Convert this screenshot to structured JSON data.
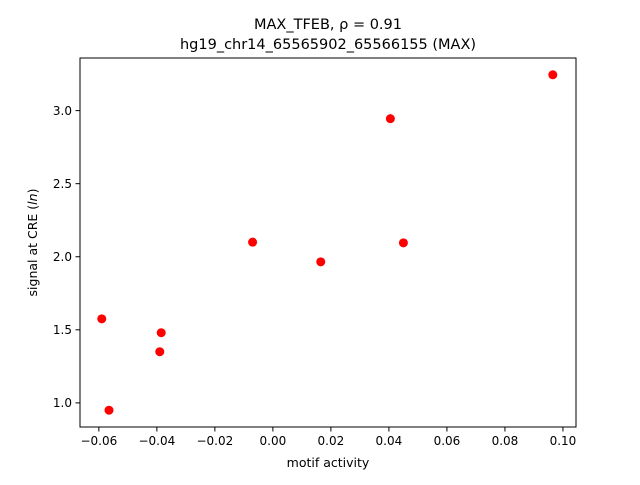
{
  "chart_data": {
    "type": "scatter",
    "title_line1": "MAX_TFEB, ρ = 0.91",
    "title_line2": "hg19_chr14_65565902_65566155 (MAX)",
    "xlabel": "motif activity",
    "ylabel_prefix": "signal at CRE (",
    "ylabel_italic": "ln",
    "ylabel_suffix": ")",
    "xlim": [
      -0.0665,
      0.1045
    ],
    "ylim": [
      0.835,
      3.36
    ],
    "xticks": [
      -0.06,
      -0.04,
      -0.02,
      0.0,
      0.02,
      0.04,
      0.06,
      0.08,
      0.1
    ],
    "xtick_labels": [
      "−0.06",
      "−0.04",
      "−0.02",
      "0.00",
      "0.02",
      "0.04",
      "0.06",
      "0.08",
      "0.10"
    ],
    "yticks": [
      1.0,
      1.5,
      2.0,
      2.5,
      3.0
    ],
    "ytick_labels": [
      "1.0",
      "1.5",
      "2.0",
      "2.5",
      "3.0"
    ],
    "marker_color": "#ff0000",
    "grid": false,
    "points": [
      {
        "x": -0.059,
        "y": 1.575
      },
      {
        "x": -0.0565,
        "y": 0.95
      },
      {
        "x": -0.0385,
        "y": 1.48
      },
      {
        "x": -0.039,
        "y": 1.35
      },
      {
        "x": -0.007,
        "y": 2.1
      },
      {
        "x": 0.0165,
        "y": 1.965
      },
      {
        "x": 0.0405,
        "y": 2.945
      },
      {
        "x": 0.045,
        "y": 2.095
      },
      {
        "x": 0.0965,
        "y": 3.245
      }
    ]
  }
}
